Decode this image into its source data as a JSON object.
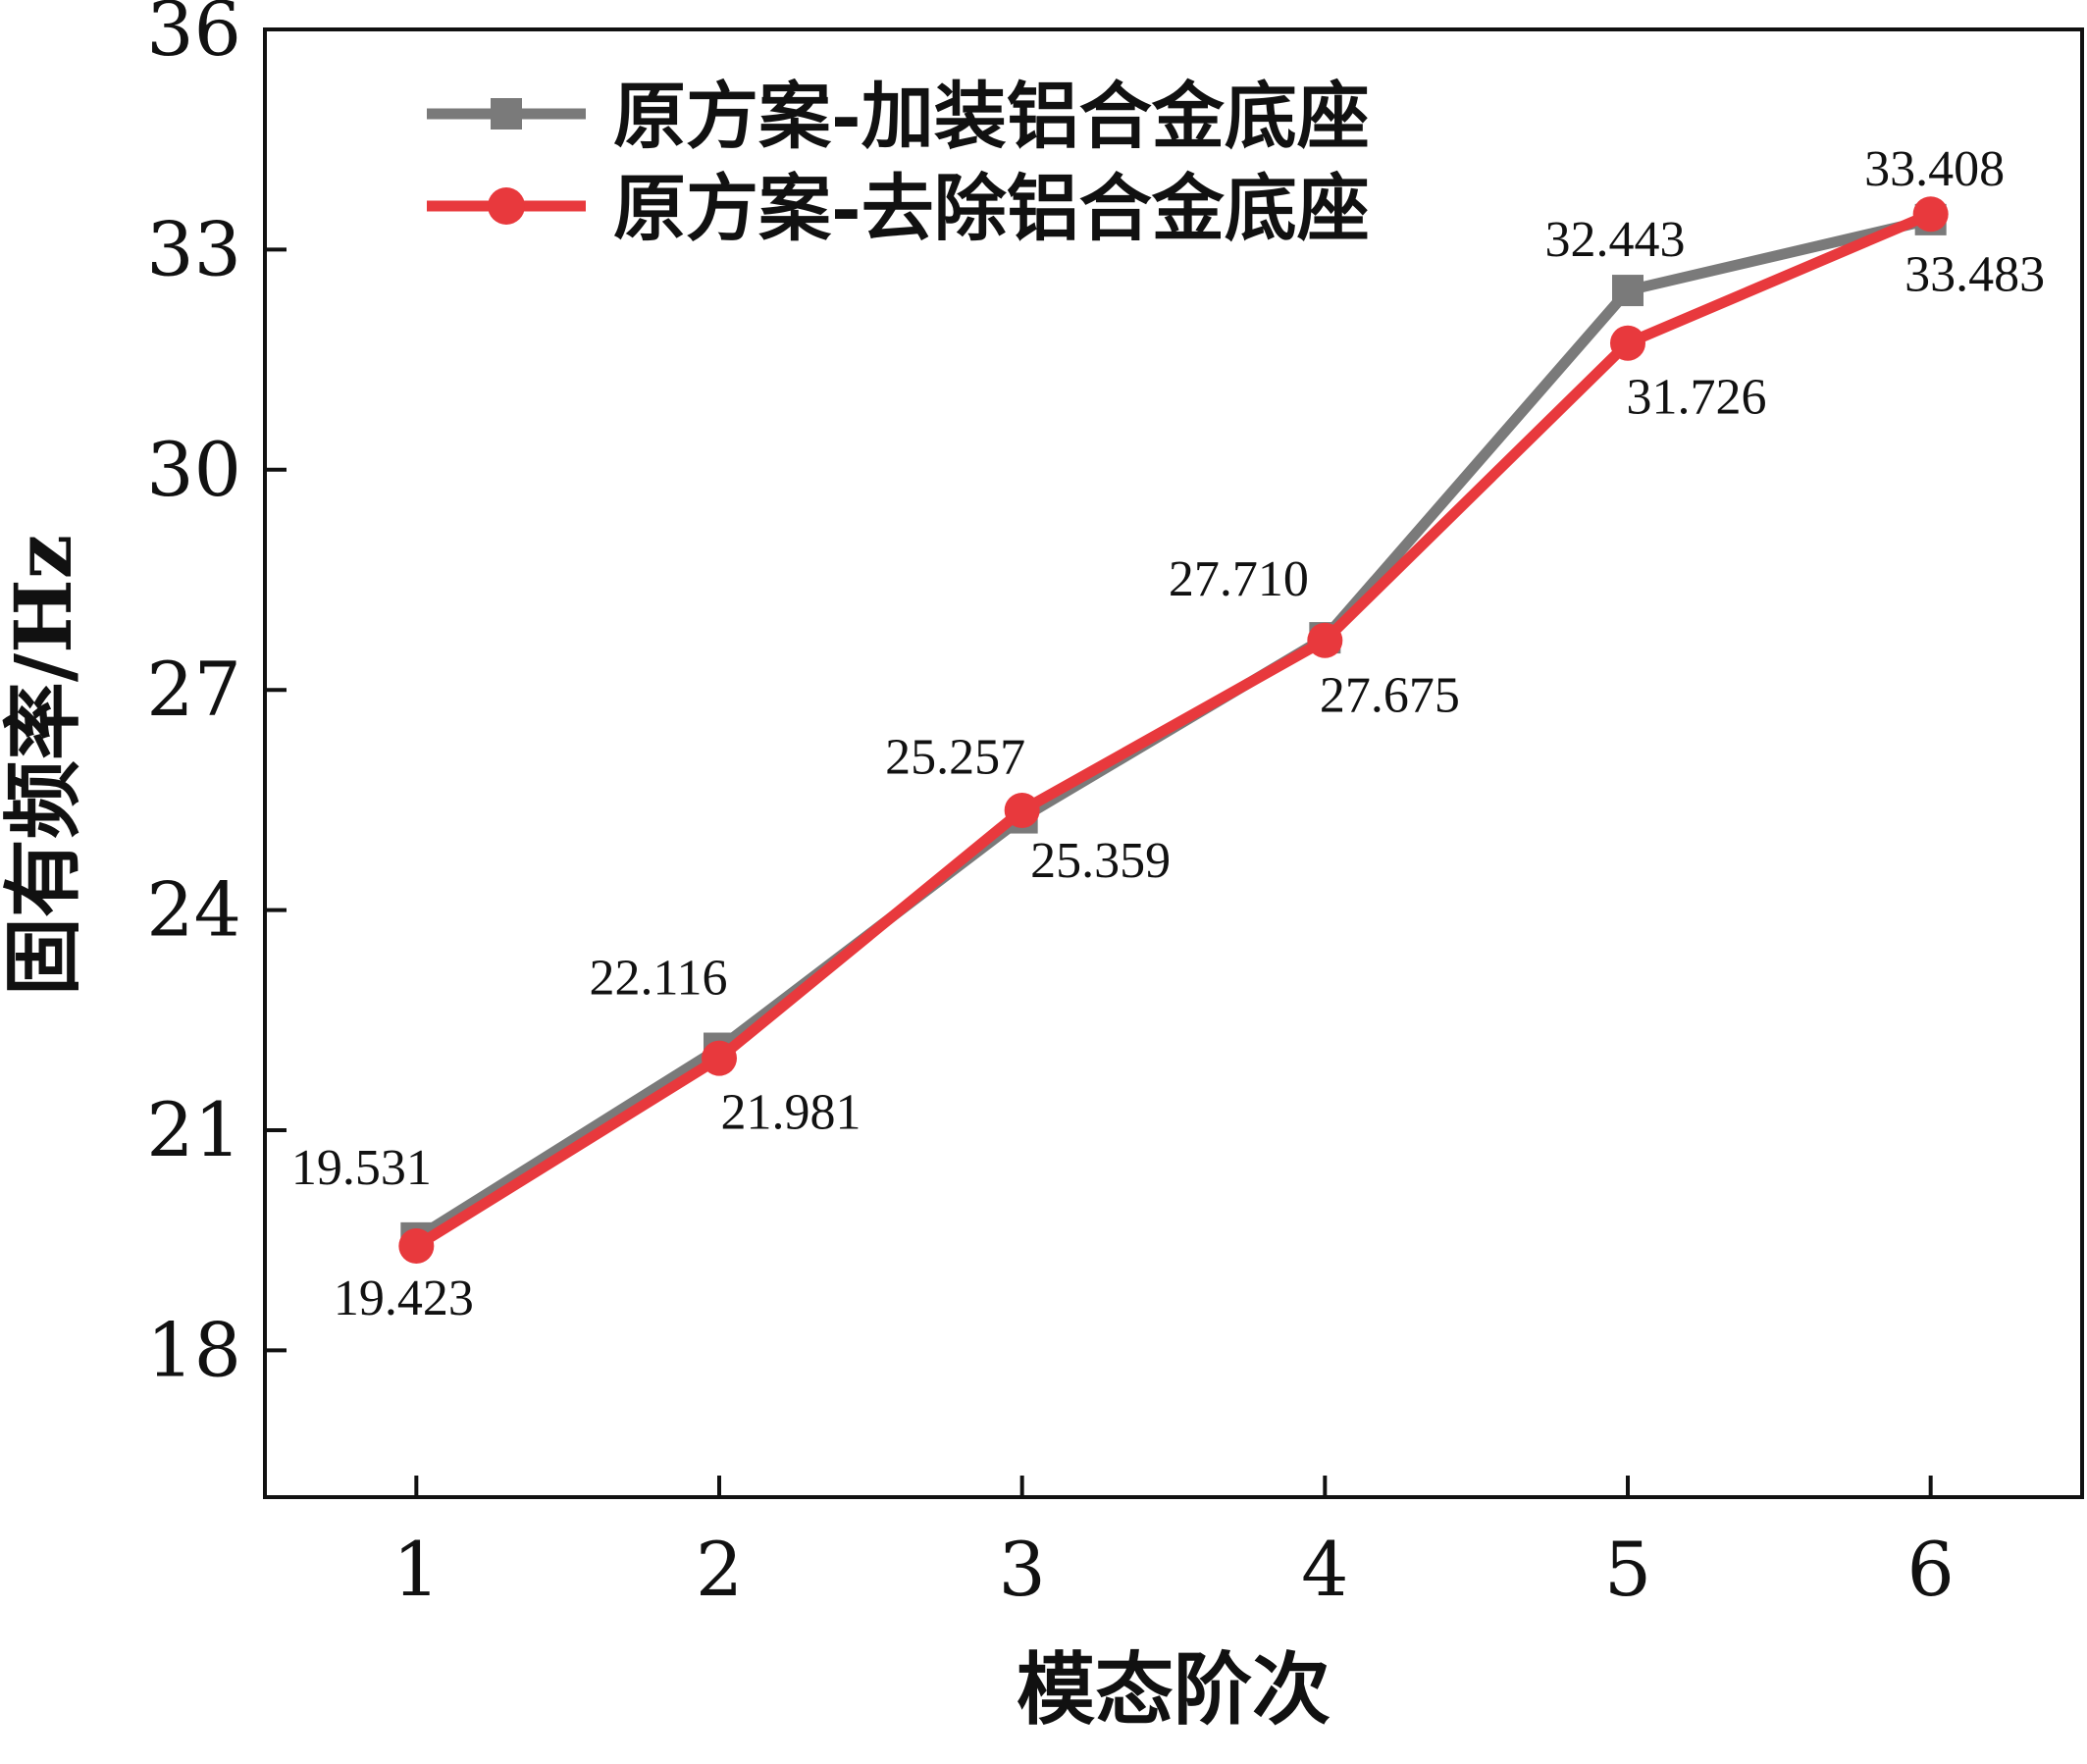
{
  "chart_data": {
    "type": "line",
    "xlabel": "模态阶次",
    "ylabel": "固有频率/Hz",
    "x": [
      1,
      2,
      3,
      4,
      5,
      6
    ],
    "xlim": [
      0.5,
      6.5
    ],
    "ylim": [
      16,
      36
    ],
    "yticks": [
      18,
      21,
      24,
      27,
      30,
      33,
      36
    ],
    "grid": false,
    "legend_position": "top-left",
    "series": [
      {
        "name": "原方案-加装铝合金底座",
        "color": "#7a7a7a",
        "marker": "square",
        "values": [
          19.531,
          22.116,
          25.257,
          27.71,
          32.443,
          33.408
        ],
        "labels": [
          "19.531",
          "22.116",
          "25.257",
          "27.710",
          "32.443",
          "33.408"
        ]
      },
      {
        "name": "原方案-去除铝合金底座",
        "color": "#e8393d",
        "marker": "circle",
        "values": [
          19.423,
          21.981,
          25.359,
          27.675,
          31.726,
          33.483
        ],
        "labels": [
          "19.423",
          "21.981",
          "25.359",
          "27.675",
          "31.726",
          "33.483"
        ]
      }
    ]
  }
}
